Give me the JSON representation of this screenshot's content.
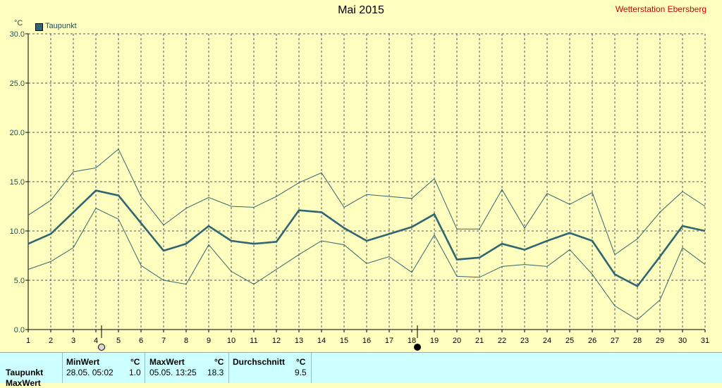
{
  "header": {
    "title": "Mai 2015",
    "station": "Wetterstation Ebersberg",
    "unit": "°C"
  },
  "colors": {
    "background": "#ffffc0",
    "series": "#2e6672",
    "grid": "#555555",
    "station_text": "#d00000",
    "stats_background": "#ccffff"
  },
  "chart_data": {
    "type": "line",
    "title": "Mai 2015",
    "ylabel": "°C",
    "ylim": [
      0,
      30
    ],
    "yticks": [
      "0.0",
      "5.0",
      "10.0",
      "15.0",
      "20.0",
      "25.0",
      "30.0"
    ],
    "x": [
      1,
      2,
      3,
      4,
      5,
      6,
      7,
      8,
      9,
      10,
      11,
      12,
      13,
      14,
      15,
      16,
      17,
      18,
      19,
      20,
      21,
      22,
      23,
      24,
      25,
      26,
      27,
      28,
      29,
      30,
      31
    ],
    "legend": [
      "Taupunkt"
    ],
    "legend_position": "top-left",
    "grid": true,
    "series": [
      {
        "name": "Taupunkt",
        "role": "mean",
        "values": [
          8.7,
          9.7,
          11.9,
          14.1,
          13.6,
          10.8,
          8.0,
          8.7,
          10.5,
          9.0,
          8.7,
          8.9,
          12.1,
          11.9,
          10.3,
          9.0,
          9.7,
          10.4,
          11.7,
          7.1,
          7.3,
          8.7,
          8.1,
          9.0,
          9.8,
          9.0,
          5.6,
          4.4,
          7.4,
          10.5,
          10.0
        ]
      },
      {
        "role": "max",
        "values": [
          11.6,
          13.1,
          16.0,
          16.4,
          18.3,
          13.5,
          10.6,
          12.3,
          13.4,
          12.5,
          12.4,
          13.5,
          14.9,
          15.9,
          12.4,
          13.7,
          13.5,
          13.3,
          15.3,
          10.2,
          10.2,
          14.2,
          10.3,
          13.8,
          12.7,
          13.9,
          7.6,
          9.2,
          11.9,
          14.0,
          12.5
        ]
      },
      {
        "role": "min",
        "values": [
          6.1,
          6.9,
          8.3,
          12.3,
          11.2,
          6.5,
          5.0,
          4.6,
          8.6,
          5.9,
          4.6,
          6.1,
          7.6,
          9.0,
          8.6,
          6.7,
          7.4,
          5.8,
          9.6,
          5.4,
          5.3,
          6.4,
          6.6,
          6.4,
          8.1,
          5.6,
          2.4,
          1.0,
          3.0,
          8.3,
          6.6
        ]
      }
    ],
    "markers": [
      {
        "day": 4,
        "symbol": "open-circle"
      },
      {
        "day": 18,
        "symbol": "filled-circle"
      }
    ]
  },
  "stats": {
    "row_label": "Taupunkt",
    "second_row_label": "MaxWert",
    "min": {
      "header": "MinWert",
      "unit": "°C",
      "datetime": "28.05.  05:02",
      "value": "1.0"
    },
    "max": {
      "header": "MaxWert",
      "unit": "°C",
      "datetime": "05.05.  13:25",
      "value": "18.3"
    },
    "avg": {
      "header": "Durchschnitt",
      "unit": "°C",
      "value": "9.5"
    }
  }
}
